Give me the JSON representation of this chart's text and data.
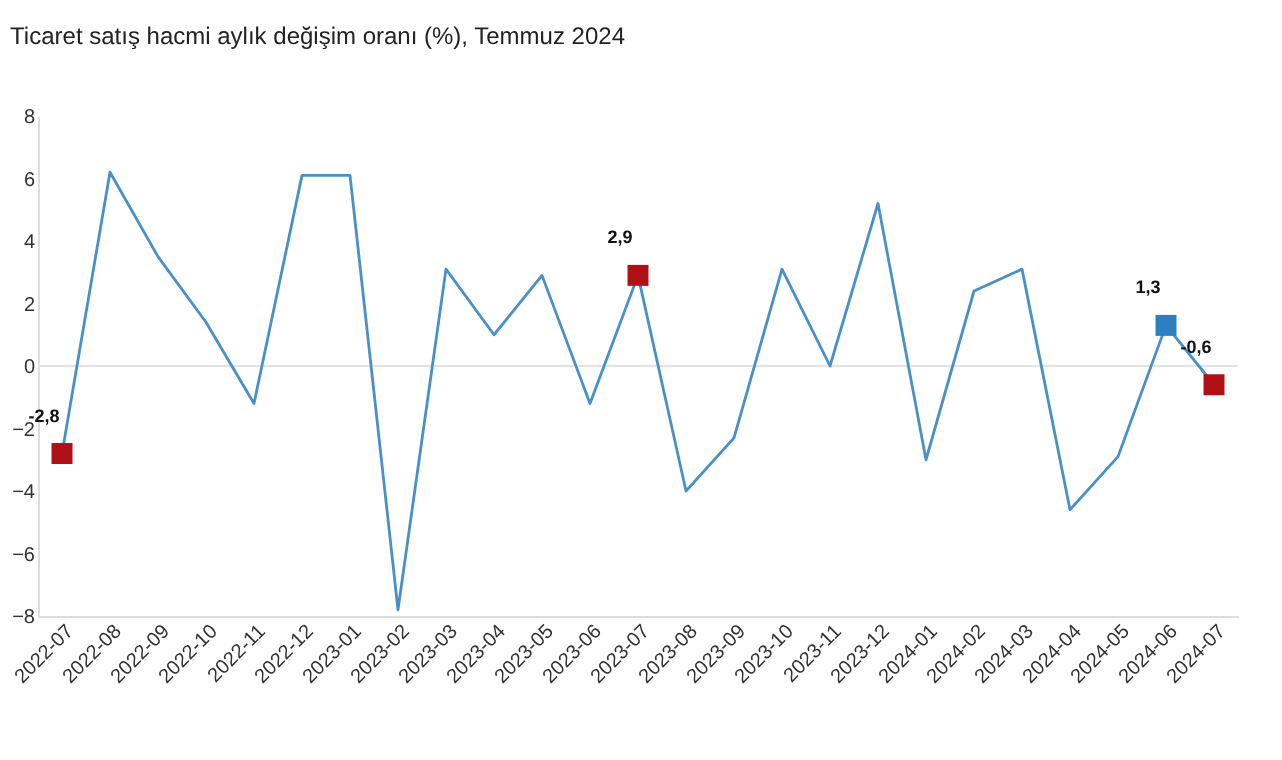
{
  "chart_data": {
    "type": "line",
    "title": "Ticaret satış hacmi aylık değişim oranı (%), Temmuz 2024",
    "categories": [
      "2022-07",
      "2022-08",
      "2022-09",
      "2022-10",
      "2022-11",
      "2022-12",
      "2023-01",
      "2023-02",
      "2023-03",
      "2023-04",
      "2023-05",
      "2023-06",
      "2023-07",
      "2023-08",
      "2023-09",
      "2023-10",
      "2023-11",
      "2023-12",
      "2024-01",
      "2024-02",
      "2024-03",
      "2024-04",
      "2024-05",
      "2024-06",
      "2024-07"
    ],
    "series": [
      {
        "color": "#4a90c8",
        "marker": "none",
        "values": [
          -2.8,
          6.2,
          3.5,
          1.4,
          -1.2,
          6.1,
          6.1,
          -7.8,
          3.1,
          1.0,
          2.9,
          -1.2,
          2.9,
          -4.0,
          -2.3,
          3.1,
          0.0,
          5.2,
          -3.0,
          2.4,
          3.1,
          -4.6,
          -2.9,
          1.3,
          -0.6
        ]
      },
      {
        "type": "scatter",
        "marker": "square",
        "values": [
          -2.8,
          null,
          null,
          null,
          null,
          null,
          null,
          null,
          null,
          null,
          null,
          null,
          2.9,
          null,
          null,
          null,
          null,
          null,
          null,
          null,
          null,
          null,
          null,
          1.3,
          -0.6
        ],
        "colors": [
          "#b01116",
          null,
          null,
          null,
          null,
          null,
          null,
          null,
          null,
          null,
          null,
          null,
          "#b01116",
          null,
          null,
          null,
          null,
          null,
          null,
          null,
          null,
          null,
          null,
          "#2e7fbf",
          "#b01116"
        ],
        "value_labels": [
          "-2,8",
          null,
          null,
          null,
          null,
          null,
          null,
          null,
          null,
          null,
          null,
          null,
          "2,9",
          null,
          null,
          null,
          null,
          null,
          null,
          null,
          null,
          null,
          null,
          "1,3",
          "-0,6"
        ]
      }
    ],
    "ylim": [
      -8,
      8
    ],
    "yticks": [
      -8,
      -6,
      -4,
      -2,
      0,
      2,
      4,
      6,
      8
    ],
    "grid": false,
    "ref_lines": [
      {
        "axis": "y",
        "value": 0,
        "color": "#e3e3e3"
      }
    ]
  }
}
